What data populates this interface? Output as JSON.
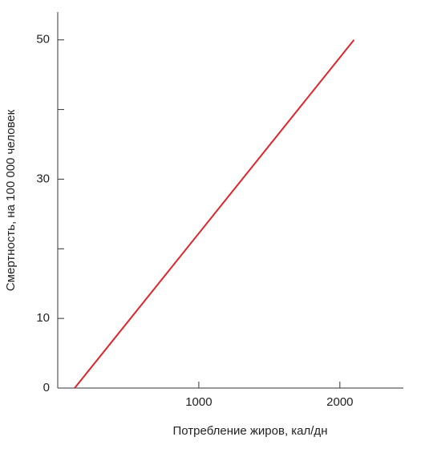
{
  "chart_data": {
    "type": "line",
    "x_label": "Потребление жиров, кал/дн",
    "y_label": "Смертность, на 100 000 человек",
    "series": [
      {
        "x": [
          120,
          2100
        ],
        "values": [
          0,
          50
        ],
        "color": "#e0242b"
      }
    ],
    "xlim": [
      0,
      2450
    ],
    "xticks": [
      1000,
      2000
    ],
    "ylim": [
      0,
      54
    ],
    "yticks": [
      0,
      10,
      30,
      50
    ],
    "yminor_ticks": [
      20,
      40
    ],
    "grid": false
  }
}
